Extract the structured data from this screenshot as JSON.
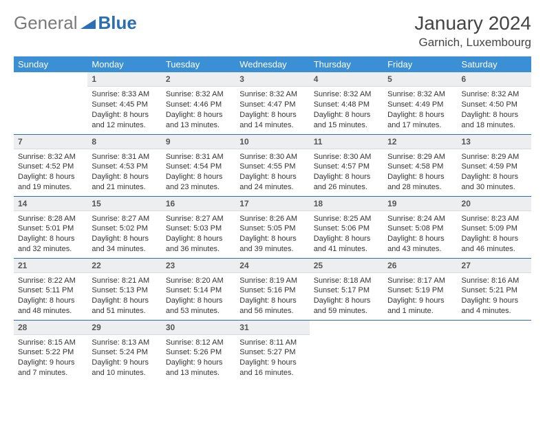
{
  "brand": {
    "part1": "General",
    "part2": "Blue"
  },
  "title": "January 2024",
  "location": "Garnich, Luxembourg",
  "colors": {
    "header_bg": "#3b8fd4",
    "header_text": "#ffffff",
    "daynum_bg": "#eceeef",
    "rule": "#2a6fb5",
    "brand_gray": "#7a7a7a",
    "brand_blue": "#2a6fb5"
  },
  "weekdays": [
    "Sunday",
    "Monday",
    "Tuesday",
    "Wednesday",
    "Thursday",
    "Friday",
    "Saturday"
  ],
  "weeks": [
    [
      null,
      {
        "n": "1",
        "sr": "Sunrise: 8:33 AM",
        "ss": "Sunset: 4:45 PM",
        "dl": "Daylight: 8 hours and 12 minutes."
      },
      {
        "n": "2",
        "sr": "Sunrise: 8:32 AM",
        "ss": "Sunset: 4:46 PM",
        "dl": "Daylight: 8 hours and 13 minutes."
      },
      {
        "n": "3",
        "sr": "Sunrise: 8:32 AM",
        "ss": "Sunset: 4:47 PM",
        "dl": "Daylight: 8 hours and 14 minutes."
      },
      {
        "n": "4",
        "sr": "Sunrise: 8:32 AM",
        "ss": "Sunset: 4:48 PM",
        "dl": "Daylight: 8 hours and 15 minutes."
      },
      {
        "n": "5",
        "sr": "Sunrise: 8:32 AM",
        "ss": "Sunset: 4:49 PM",
        "dl": "Daylight: 8 hours and 17 minutes."
      },
      {
        "n": "6",
        "sr": "Sunrise: 8:32 AM",
        "ss": "Sunset: 4:50 PM",
        "dl": "Daylight: 8 hours and 18 minutes."
      }
    ],
    [
      {
        "n": "7",
        "sr": "Sunrise: 8:32 AM",
        "ss": "Sunset: 4:52 PM",
        "dl": "Daylight: 8 hours and 19 minutes."
      },
      {
        "n": "8",
        "sr": "Sunrise: 8:31 AM",
        "ss": "Sunset: 4:53 PM",
        "dl": "Daylight: 8 hours and 21 minutes."
      },
      {
        "n": "9",
        "sr": "Sunrise: 8:31 AM",
        "ss": "Sunset: 4:54 PM",
        "dl": "Daylight: 8 hours and 23 minutes."
      },
      {
        "n": "10",
        "sr": "Sunrise: 8:30 AM",
        "ss": "Sunset: 4:55 PM",
        "dl": "Daylight: 8 hours and 24 minutes."
      },
      {
        "n": "11",
        "sr": "Sunrise: 8:30 AM",
        "ss": "Sunset: 4:57 PM",
        "dl": "Daylight: 8 hours and 26 minutes."
      },
      {
        "n": "12",
        "sr": "Sunrise: 8:29 AM",
        "ss": "Sunset: 4:58 PM",
        "dl": "Daylight: 8 hours and 28 minutes."
      },
      {
        "n": "13",
        "sr": "Sunrise: 8:29 AM",
        "ss": "Sunset: 4:59 PM",
        "dl": "Daylight: 8 hours and 30 minutes."
      }
    ],
    [
      {
        "n": "14",
        "sr": "Sunrise: 8:28 AM",
        "ss": "Sunset: 5:01 PM",
        "dl": "Daylight: 8 hours and 32 minutes."
      },
      {
        "n": "15",
        "sr": "Sunrise: 8:27 AM",
        "ss": "Sunset: 5:02 PM",
        "dl": "Daylight: 8 hours and 34 minutes."
      },
      {
        "n": "16",
        "sr": "Sunrise: 8:27 AM",
        "ss": "Sunset: 5:03 PM",
        "dl": "Daylight: 8 hours and 36 minutes."
      },
      {
        "n": "17",
        "sr": "Sunrise: 8:26 AM",
        "ss": "Sunset: 5:05 PM",
        "dl": "Daylight: 8 hours and 39 minutes."
      },
      {
        "n": "18",
        "sr": "Sunrise: 8:25 AM",
        "ss": "Sunset: 5:06 PM",
        "dl": "Daylight: 8 hours and 41 minutes."
      },
      {
        "n": "19",
        "sr": "Sunrise: 8:24 AM",
        "ss": "Sunset: 5:08 PM",
        "dl": "Daylight: 8 hours and 43 minutes."
      },
      {
        "n": "20",
        "sr": "Sunrise: 8:23 AM",
        "ss": "Sunset: 5:09 PM",
        "dl": "Daylight: 8 hours and 46 minutes."
      }
    ],
    [
      {
        "n": "21",
        "sr": "Sunrise: 8:22 AM",
        "ss": "Sunset: 5:11 PM",
        "dl": "Daylight: 8 hours and 48 minutes."
      },
      {
        "n": "22",
        "sr": "Sunrise: 8:21 AM",
        "ss": "Sunset: 5:13 PM",
        "dl": "Daylight: 8 hours and 51 minutes."
      },
      {
        "n": "23",
        "sr": "Sunrise: 8:20 AM",
        "ss": "Sunset: 5:14 PM",
        "dl": "Daylight: 8 hours and 53 minutes."
      },
      {
        "n": "24",
        "sr": "Sunrise: 8:19 AM",
        "ss": "Sunset: 5:16 PM",
        "dl": "Daylight: 8 hours and 56 minutes."
      },
      {
        "n": "25",
        "sr": "Sunrise: 8:18 AM",
        "ss": "Sunset: 5:17 PM",
        "dl": "Daylight: 8 hours and 59 minutes."
      },
      {
        "n": "26",
        "sr": "Sunrise: 8:17 AM",
        "ss": "Sunset: 5:19 PM",
        "dl": "Daylight: 9 hours and 1 minute."
      },
      {
        "n": "27",
        "sr": "Sunrise: 8:16 AM",
        "ss": "Sunset: 5:21 PM",
        "dl": "Daylight: 9 hours and 4 minutes."
      }
    ],
    [
      {
        "n": "28",
        "sr": "Sunrise: 8:15 AM",
        "ss": "Sunset: 5:22 PM",
        "dl": "Daylight: 9 hours and 7 minutes."
      },
      {
        "n": "29",
        "sr": "Sunrise: 8:13 AM",
        "ss": "Sunset: 5:24 PM",
        "dl": "Daylight: 9 hours and 10 minutes."
      },
      {
        "n": "30",
        "sr": "Sunrise: 8:12 AM",
        "ss": "Sunset: 5:26 PM",
        "dl": "Daylight: 9 hours and 13 minutes."
      },
      {
        "n": "31",
        "sr": "Sunrise: 8:11 AM",
        "ss": "Sunset: 5:27 PM",
        "dl": "Daylight: 9 hours and 16 minutes."
      },
      null,
      null,
      null
    ]
  ]
}
